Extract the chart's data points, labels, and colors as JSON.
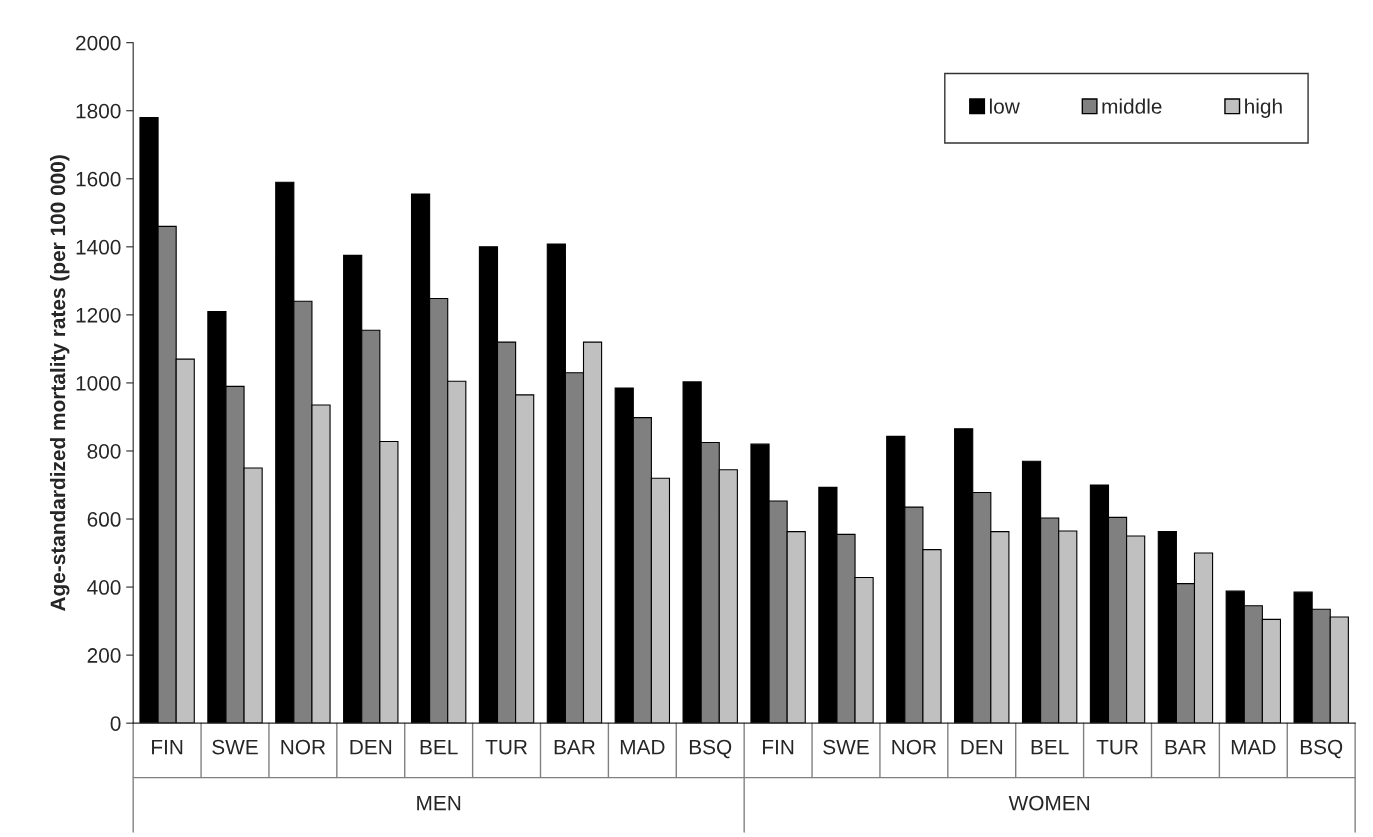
{
  "chart_data": {
    "type": "bar",
    "ylabel": "Age-standardized mortality rates (per 100 000)",
    "categories": [
      "FIN",
      "SWE",
      "NOR",
      "DEN",
      "BEL",
      "TUR",
      "BAR",
      "MAD",
      "BSQ",
      "FIN",
      "SWE",
      "NOR",
      "DEN",
      "BEL",
      "TUR",
      "BAR",
      "MAD",
      "BSQ"
    ],
    "series": [
      {
        "name": "low",
        "color": "#000000",
        "values": [
          1780,
          1210,
          1590,
          1375,
          1555,
          1400,
          1408,
          985,
          1003,
          820,
          693,
          843,
          865,
          770,
          700,
          563,
          388,
          385
        ]
      },
      {
        "name": "middle",
        "color": "#808080",
        "values": [
          1460,
          990,
          1240,
          1155,
          1248,
          1120,
          1030,
          898,
          825,
          653,
          555,
          635,
          678,
          603,
          605,
          410,
          345,
          335
        ]
      },
      {
        "name": "high",
        "color": "#c0c0c0",
        "values": [
          1070,
          750,
          935,
          828,
          1005,
          965,
          1120,
          720,
          745,
          563,
          428,
          510,
          563,
          565,
          550,
          500,
          305,
          312
        ]
      }
    ],
    "ylim": [
      0,
      2000
    ],
    "yticks": [
      0,
      200,
      400,
      600,
      800,
      1000,
      1200,
      1400,
      1600,
      1800,
      2000
    ],
    "annotations": [
      "MEN",
      "WOMEN"
    ],
    "legend": "top right",
    "grid": false
  }
}
